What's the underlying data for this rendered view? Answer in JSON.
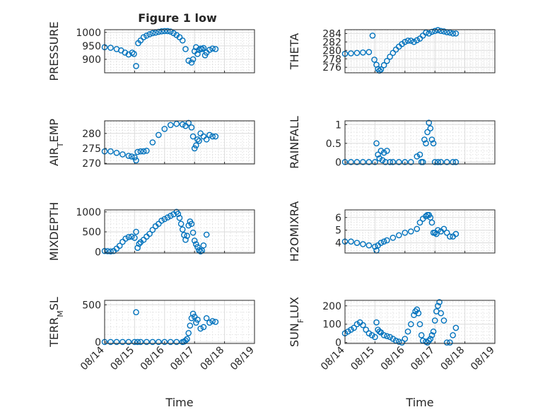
{
  "figure": {
    "title": "Figure 1 low"
  },
  "colors": {
    "marker": "#0072BD",
    "axes": "#262626",
    "grid": "#dcdcdc",
    "background": "#ffffff"
  },
  "chart_data": [
    {
      "type": "scatter",
      "ylabel": "PRESSURE",
      "ylabel_sub": "",
      "ylim": [
        850,
        1010
      ],
      "yticks": [
        900,
        950,
        1000
      ],
      "xlim": [
        0,
        5
      ],
      "xlabel": "",
      "grid": true,
      "series": [
        {
          "x": [
            0,
            0.2,
            0.4,
            0.55,
            0.68,
            0.8,
            0.92,
            0.98,
            1.05,
            1.12,
            1.2,
            1.3,
            1.4,
            1.5,
            1.6,
            1.7,
            1.8,
            1.9,
            2.0,
            2.1,
            2.2,
            2.3,
            2.4,
            2.5,
            2.6,
            2.7,
            2.8,
            2.9,
            2.95,
            3.0,
            3.05,
            3.1,
            3.15,
            3.2,
            3.25,
            3.3,
            3.35,
            3.4,
            3.5,
            3.6,
            3.7
          ],
          "values": [
            945,
            943,
            938,
            933,
            925,
            918,
            925,
            920,
            875,
            960,
            970,
            982,
            988,
            993,
            997,
            999,
            1002,
            1004,
            1005,
            1005,
            1003,
            997,
            990,
            982,
            970,
            938,
            895,
            888,
            900,
            930,
            945,
            920,
            935,
            940,
            938,
            942,
            915,
            925,
            935,
            940,
            938
          ]
        }
      ]
    },
    {
      "type": "scatter",
      "ylabel": "THETA",
      "ylabel_sub": "",
      "ylim": [
        274.7,
        284.9
      ],
      "yticks": [
        276,
        278,
        280,
        282,
        284
      ],
      "xlim": [
        0,
        5
      ],
      "xlabel": "",
      "grid": true,
      "series": [
        {
          "x": [
            0,
            0.2,
            0.4,
            0.6,
            0.8,
            0.92,
            0.98,
            1.05,
            1.1,
            1.15,
            1.2,
            1.3,
            1.4,
            1.5,
            1.6,
            1.7,
            1.8,
            1.9,
            2.0,
            2.1,
            2.2,
            2.3,
            2.4,
            2.5,
            2.6,
            2.7,
            2.8,
            2.9,
            3.0,
            3.1,
            3.2,
            3.3,
            3.4,
            3.5,
            3.6,
            3.7
          ],
          "values": [
            279.2,
            279.3,
            279.4,
            279.5,
            279.6,
            283.5,
            277.8,
            276.6,
            275.6,
            275.2,
            275.5,
            276.5,
            277.5,
            278.5,
            279.4,
            280.2,
            280.9,
            281.5,
            282.0,
            282.3,
            282.3,
            282.0,
            282.4,
            282.8,
            283.5,
            284.2,
            284.0,
            284.4,
            284.6,
            284.8,
            284.6,
            284.5,
            284.3,
            284.2,
            284.0,
            284.0
          ]
        }
      ]
    },
    {
      "type": "scatter",
      "ylabel": "AIR",
      "ylabel_sub": "T",
      "ylabel_tail": "EMP",
      "ylim": [
        269.8,
        284.2
      ],
      "yticks": [
        270,
        275,
        280
      ],
      "xlim": [
        0,
        5
      ],
      "xlabel": "",
      "grid": true,
      "series": [
        {
          "x": [
            0,
            0.2,
            0.4,
            0.6,
            0.8,
            0.9,
            1.0,
            1.05,
            1.1,
            1.2,
            1.3,
            1.4,
            1.6,
            1.8,
            2.0,
            2.2,
            2.4,
            2.6,
            2.7,
            2.8,
            2.9,
            2.95,
            3.0,
            3.05,
            3.1,
            3.15,
            3.2,
            3.3,
            3.4,
            3.5,
            3.6,
            3.7
          ],
          "values": [
            274,
            274,
            273.5,
            273,
            272.5,
            272.3,
            272.0,
            271.0,
            273.8,
            274.0,
            274.0,
            274.2,
            277.0,
            279.5,
            281.5,
            282.8,
            283.2,
            283.0,
            282.5,
            283.5,
            282.0,
            279.0,
            275.0,
            276.0,
            278.0,
            277.5,
            280.0,
            279.0,
            278.0,
            279.5,
            279.0,
            279.0
          ]
        }
      ]
    },
    {
      "type": "scatter",
      "ylabel": "RAINFALL",
      "ylabel_sub": "",
      "ylim": [
        -0.05,
        1.1
      ],
      "yticks": [
        0,
        0.5,
        1
      ],
      "ytick_labels": [
        "0",
        "0.5",
        "1"
      ],
      "xlim": [
        0,
        5
      ],
      "xlabel": "",
      "grid": true,
      "series": [
        {
          "x": [
            0,
            0.2,
            0.4,
            0.6,
            0.8,
            1.0,
            1.05,
            1.1,
            1.15,
            1.2,
            1.25,
            1.3,
            1.35,
            1.4,
            1.5,
            1.6,
            1.8,
            2.0,
            2.2,
            2.4,
            2.5,
            2.55,
            2.6,
            2.65,
            2.7,
            2.75,
            2.8,
            2.85,
            2.9,
            2.95,
            3.0,
            3.1,
            3.2,
            3.4,
            3.6,
            3.7
          ],
          "values": [
            0,
            0,
            0,
            0,
            0,
            0,
            0.5,
            0.2,
            0.1,
            0.3,
            0.05,
            0.25,
            0,
            0.3,
            0,
            0,
            0,
            0,
            0,
            0.15,
            0.2,
            0,
            0,
            0.6,
            0.5,
            0.8,
            1.05,
            0.9,
            0.6,
            0.5,
            0,
            0,
            0,
            0,
            0,
            0
          ]
        }
      ]
    },
    {
      "type": "scatter",
      "ylabel": "MIXDEPTH",
      "ylabel_sub": "",
      "ylim": [
        -30,
        1050
      ],
      "yticks": [
        0,
        500,
        1000
      ],
      "xlim": [
        0,
        5
      ],
      "xlabel": "",
      "grid": true,
      "series": [
        {
          "x": [
            0,
            0.1,
            0.2,
            0.3,
            0.4,
            0.5,
            0.6,
            0.7,
            0.8,
            0.9,
            1.0,
            1.05,
            1.1,
            1.15,
            1.2,
            1.3,
            1.4,
            1.5,
            1.6,
            1.7,
            1.8,
            1.9,
            2.0,
            2.1,
            2.2,
            2.3,
            2.4,
            2.45,
            2.5,
            2.55,
            2.6,
            2.65,
            2.7,
            2.75,
            2.8,
            2.85,
            2.9,
            2.95,
            3.0,
            3.05,
            3.1,
            3.15,
            3.2,
            3.25,
            3.3,
            3.4
          ],
          "values": [
            20,
            15,
            10,
            20,
            80,
            150,
            250,
            330,
            370,
            380,
            350,
            500,
            100,
            200,
            240,
            300,
            380,
            450,
            550,
            640,
            700,
            780,
            820,
            860,
            900,
            940,
            1000,
            950,
            850,
            700,
            560,
            420,
            300,
            400,
            660,
            760,
            700,
            480,
            280,
            190,
            120,
            40,
            10,
            30,
            160,
            430
          ]
        }
      ]
    },
    {
      "type": "scatter",
      "ylabel": "H2OMIXRA",
      "ylabel_sub": "",
      "ylim": [
        3.2,
        6.6
      ],
      "yticks": [
        4,
        5,
        6
      ],
      "xlim": [
        0,
        5
      ],
      "xlabel": "",
      "grid": true,
      "series": [
        {
          "x": [
            0,
            0.2,
            0.4,
            0.6,
            0.8,
            1.0,
            1.05,
            1.1,
            1.2,
            1.3,
            1.4,
            1.6,
            1.8,
            2.0,
            2.2,
            2.4,
            2.5,
            2.6,
            2.7,
            2.75,
            2.8,
            2.85,
            2.9,
            2.95,
            3.0,
            3.05,
            3.1,
            3.2,
            3.3,
            3.4,
            3.5,
            3.6,
            3.7
          ],
          "values": [
            4.1,
            4.1,
            4.0,
            3.9,
            3.8,
            3.7,
            3.4,
            3.8,
            4.0,
            4.1,
            4.2,
            4.4,
            4.6,
            4.8,
            4.9,
            5.1,
            5.6,
            5.9,
            6.1,
            6.2,
            6.2,
            6.0,
            5.6,
            4.8,
            4.8,
            4.7,
            5.0,
            4.9,
            5.1,
            4.8,
            4.5,
            4.5,
            4.7
          ]
        }
      ]
    },
    {
      "type": "scatter",
      "ylabel": "TERR",
      "ylabel_sub": "M",
      "ylabel_tail": "SL",
      "ylim": [
        -20,
        560
      ],
      "yticks": [
        0,
        500
      ],
      "xlim": [
        0,
        5
      ],
      "xlabel": "Time",
      "xticks": [
        0,
        1,
        2,
        3,
        4,
        5
      ],
      "xtick_labels": [
        "08/14",
        "08/15",
        "08/16",
        "08/17",
        "08/18",
        "08/19"
      ],
      "grid": true,
      "series": [
        {
          "x": [
            0,
            0.2,
            0.4,
            0.6,
            0.8,
            1.0,
            1.05,
            1.1,
            1.2,
            1.4,
            1.6,
            1.8,
            2.0,
            2.2,
            2.4,
            2.6,
            2.65,
            2.7,
            2.75,
            2.8,
            2.85,
            2.9,
            2.95,
            3.0,
            3.05,
            3.1,
            3.2,
            3.3,
            3.4,
            3.5,
            3.6,
            3.7
          ],
          "values": [
            0,
            0,
            0,
            0,
            0,
            0,
            400,
            0,
            0,
            0,
            0,
            0,
            0,
            0,
            0,
            0,
            5,
            20,
            40,
            120,
            220,
            320,
            380,
            340,
            260,
            300,
            180,
            200,
            320,
            260,
            280,
            270
          ]
        }
      ]
    },
    {
      "type": "scatter",
      "ylabel": "SUN",
      "ylabel_sub": "F",
      "ylabel_tail": "LUX",
      "ylim": [
        -5,
        230
      ],
      "yticks": [
        0,
        100,
        200
      ],
      "xlim": [
        0,
        5
      ],
      "xlabel": "Time",
      "xticks": [
        0,
        1,
        2,
        3,
        4,
        5
      ],
      "xtick_labels": [
        "08/14",
        "08/15",
        "08/16",
        "08/17",
        "08/18",
        "08/19"
      ],
      "grid": true,
      "series": [
        {
          "x": [
            0,
            0.1,
            0.2,
            0.3,
            0.4,
            0.5,
            0.6,
            0.7,
            0.8,
            0.9,
            1.0,
            1.05,
            1.1,
            1.15,
            1.2,
            1.3,
            1.4,
            1.5,
            1.6,
            1.7,
            1.8,
            1.9,
            2.0,
            2.1,
            2.2,
            2.3,
            2.35,
            2.4,
            2.45,
            2.5,
            2.55,
            2.6,
            2.7,
            2.75,
            2.8,
            2.85,
            2.9,
            2.95,
            3.0,
            3.05,
            3.1,
            3.15,
            3.2,
            3.3,
            3.4,
            3.5,
            3.6,
            3.7
          ],
          "values": [
            50,
            60,
            70,
            80,
            100,
            110,
            95,
            70,
            50,
            40,
            30,
            110,
            70,
            60,
            55,
            40,
            35,
            30,
            20,
            10,
            5,
            0,
            20,
            60,
            100,
            150,
            170,
            180,
            160,
            100,
            40,
            10,
            5,
            0,
            10,
            20,
            40,
            60,
            120,
            170,
            200,
            220,
            160,
            120,
            0,
            0,
            40,
            80
          ]
        }
      ]
    }
  ]
}
